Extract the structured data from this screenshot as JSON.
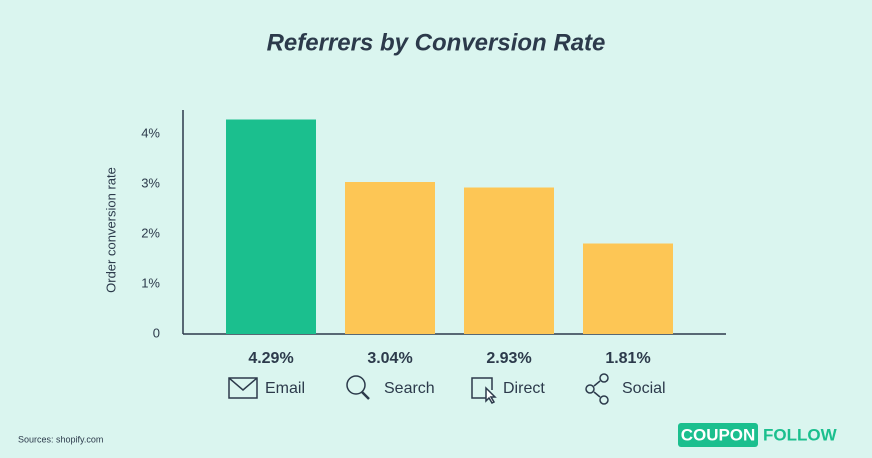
{
  "chart_data": {
    "type": "bar",
    "title": "Referrers by Conversion Rate",
    "y_label": "Order conversion rate",
    "categories": [
      "Email",
      "Search",
      "Direct",
      "Social"
    ],
    "values": [
      4.29,
      3.04,
      2.93,
      1.81
    ],
    "value_labels": [
      "4.29%",
      "3.04%",
      "2.93%",
      "1.81%"
    ],
    "colors": [
      "#1bbf8e",
      "#fdc655",
      "#fdc655",
      "#fdc655"
    ],
    "ylim": [
      0,
      4.5
    ],
    "yticks": [
      0,
      {
        "value": 1,
        "label": "1%"
      },
      {
        "value": 2,
        "label": "2%"
      },
      {
        "value": 3,
        "label": "3%"
      },
      {
        "value": 4,
        "label": "4%"
      }
    ],
    "source": "Sources: shopify.com"
  },
  "logo": {
    "left": "COUPON",
    "right": "FOLLOW"
  }
}
